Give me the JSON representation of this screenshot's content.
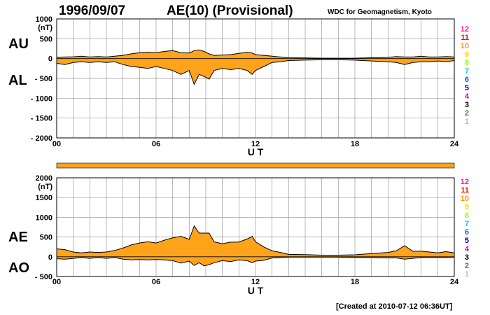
{
  "header": {
    "date": "1996/09/07",
    "title": "AE(10) (Provisional)",
    "source": "WDC for Geomagnetism, Kyoto"
  },
  "footer": "[Created at 2010-07-12 06:36UT]",
  "colors": {
    "fill": "#ffa31a",
    "outline": "#000000",
    "grid": "#999999",
    "band": "#ffa31a"
  },
  "chart_data": [
    {
      "type": "area",
      "panel": "AU/AL",
      "upper_label": "AU",
      "lower_label": "AL",
      "ylabel": "(nT)",
      "xlabel": "U T",
      "xlim": [
        0,
        24
      ],
      "ylim": [
        -2000,
        1000
      ],
      "y_ticks": [
        "1000",
        "500",
        "0",
        "- 500",
        "- 1000",
        "- 1500",
        "- 2000"
      ],
      "y_tick_values": [
        1000,
        500,
        0,
        -500,
        -1000,
        -1500,
        -2000
      ],
      "x_ticks": [
        "00",
        "06",
        "12",
        "18",
        "24"
      ],
      "x_tick_values": [
        0,
        6,
        12,
        18,
        24
      ],
      "grid": true,
      "x": [
        0,
        0.5,
        1,
        1.5,
        2,
        2.5,
        3,
        3.5,
        4,
        4.5,
        5,
        5.5,
        6,
        6.5,
        7,
        7.5,
        8,
        8.3,
        8.6,
        8.9,
        9.2,
        9.5,
        10,
        10.5,
        11,
        11.5,
        11.8,
        12,
        12.5,
        13,
        13.5,
        14,
        15,
        16,
        17,
        18,
        19,
        20,
        20.5,
        21,
        21.5,
        22,
        22.5,
        23,
        23.5,
        24
      ],
      "series": [
        {
          "name": "AU",
          "values": [
            30,
            40,
            45,
            60,
            40,
            50,
            40,
            60,
            80,
            120,
            150,
            160,
            150,
            180,
            200,
            150,
            140,
            200,
            220,
            180,
            120,
            80,
            90,
            100,
            130,
            160,
            140,
            100,
            80,
            60,
            40,
            20,
            15,
            10,
            10,
            10,
            20,
            30,
            50,
            40,
            40,
            60,
            40,
            40,
            50,
            40
          ]
        },
        {
          "name": "AL",
          "values": [
            -120,
            -150,
            -100,
            -80,
            -100,
            -80,
            -100,
            -80,
            -150,
            -200,
            -220,
            -250,
            -200,
            -250,
            -300,
            -400,
            -300,
            -650,
            -400,
            -450,
            -520,
            -300,
            -250,
            -280,
            -250,
            -300,
            -400,
            -300,
            -200,
            -100,
            -80,
            -50,
            -40,
            -30,
            -30,
            -40,
            -60,
            -80,
            -100,
            -150,
            -100,
            -80,
            -80,
            -60,
            -80,
            -50
          ]
        }
      ]
    },
    {
      "type": "area",
      "panel": "AE/AO",
      "upper_label": "AE",
      "lower_label": "AO",
      "ylabel": "(nT)",
      "xlabel": "U T",
      "xlim": [
        0,
        24
      ],
      "ylim": [
        -500,
        2000
      ],
      "y_ticks": [
        "2000",
        "1500",
        "1000",
        "500",
        "0",
        "- 500"
      ],
      "y_tick_values": [
        2000,
        1500,
        1000,
        500,
        0,
        -500
      ],
      "x_ticks": [
        "00",
        "06",
        "12",
        "18",
        "24"
      ],
      "x_tick_values": [
        0,
        6,
        12,
        18,
        24
      ],
      "grid": true,
      "x": [
        0,
        0.5,
        1,
        1.5,
        2,
        2.5,
        3,
        3.5,
        4,
        4.5,
        5,
        5.5,
        6,
        6.5,
        7,
        7.5,
        8,
        8.3,
        8.6,
        8.9,
        9.2,
        9.5,
        10,
        10.5,
        11,
        11.5,
        11.8,
        12,
        12.5,
        13,
        13.5,
        14,
        15,
        16,
        17,
        18,
        19,
        20,
        20.5,
        21,
        21.5,
        22,
        22.5,
        23,
        23.5,
        24
      ],
      "series": [
        {
          "name": "AE",
          "values": [
            200,
            180,
            120,
            100,
            120,
            110,
            120,
            160,
            220,
            300,
            350,
            380,
            350,
            420,
            480,
            520,
            440,
            780,
            600,
            600,
            600,
            380,
            330,
            370,
            370,
            450,
            520,
            380,
            250,
            150,
            110,
            60,
            55,
            40,
            40,
            50,
            80,
            110,
            150,
            280,
            140,
            140,
            120,
            100,
            130,
            100
          ]
        },
        {
          "name": "AO",
          "values": [
            -50,
            -60,
            -40,
            -20,
            -40,
            -20,
            -40,
            -20,
            -60,
            -80,
            -70,
            -80,
            -70,
            -80,
            -100,
            -160,
            -110,
            -220,
            -150,
            -230,
            -200,
            -150,
            -100,
            -120,
            -80,
            -100,
            -150,
            -110,
            -90,
            -30,
            -20,
            -10,
            -10,
            -10,
            -10,
            -20,
            -20,
            -30,
            -30,
            -60,
            -40,
            -20,
            -20,
            -20,
            -20,
            -10
          ]
        }
      ]
    }
  ],
  "level_scale": {
    "labels": [
      "12",
      "11",
      "10",
      "9",
      "8",
      "7",
      "6",
      "5",
      "4",
      "3",
      "2",
      "1"
    ],
    "colors": [
      "#ff1493",
      "#ff0000",
      "#ff9900",
      "#ffd700",
      "#99ff00",
      "#00cccc",
      "#0066ff",
      "#0000aa",
      "#cc00cc",
      "#000000",
      "#666666",
      "#bbbbbb"
    ]
  }
}
